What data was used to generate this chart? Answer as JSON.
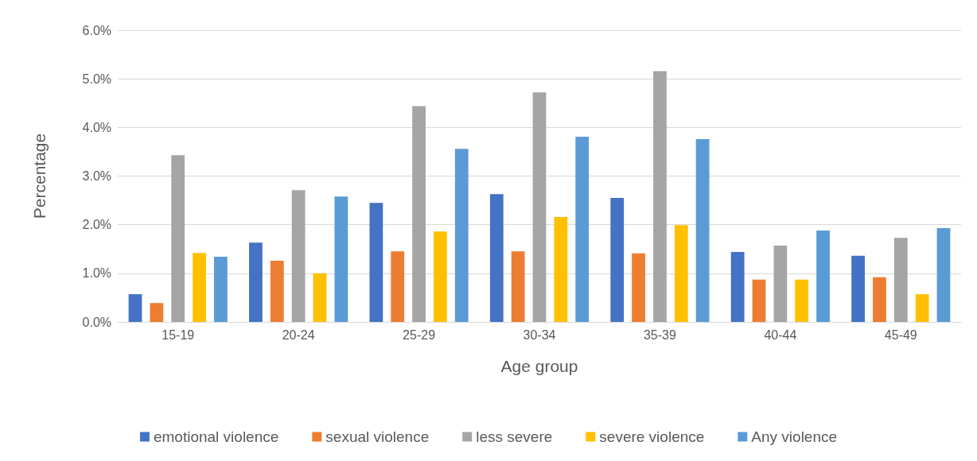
{
  "chart_data": {
    "type": "bar",
    "xlabel": "Age group",
    "ylabel": "Percentage",
    "categories": [
      "15-19",
      "20-24",
      "25-29",
      "30-34",
      "35-39",
      "40-44",
      "45-49"
    ],
    "series": [
      {
        "name": "emotional violence",
        "color": "#4472c4",
        "values": [
          0.57,
          1.63,
          2.45,
          2.63,
          2.55,
          1.44,
          1.36
        ]
      },
      {
        "name": "sexual violence",
        "color": "#ed7d31",
        "values": [
          0.39,
          1.26,
          1.45,
          1.45,
          1.41,
          0.87,
          0.92
        ]
      },
      {
        "name": "less severe",
        "color": "#a5a5a5",
        "values": [
          3.43,
          2.71,
          4.44,
          4.72,
          5.16,
          1.57,
          1.73
        ]
      },
      {
        "name": "severe violence",
        "color": "#ffc000",
        "values": [
          1.42,
          1.0,
          1.86,
          2.16,
          1.99,
          0.87,
          0.57
        ]
      },
      {
        "name": "Any violence",
        "color": "#5b9bd5",
        "values": [
          1.34,
          2.58,
          3.56,
          3.81,
          3.76,
          1.88,
          1.93
        ]
      }
    ],
    "ylim": [
      0,
      6
    ],
    "yticks": [
      {
        "value": 0,
        "label": "0.0%"
      },
      {
        "value": 1,
        "label": "1.0%"
      },
      {
        "value": 2,
        "label": "2.0%"
      },
      {
        "value": 3,
        "label": "3.0%"
      },
      {
        "value": 4,
        "label": "4.0%"
      },
      {
        "value": 5,
        "label": "5.0%"
      },
      {
        "value": 6,
        "label": "6.0%"
      }
    ],
    "grid": "y",
    "legend": "bottom"
  }
}
